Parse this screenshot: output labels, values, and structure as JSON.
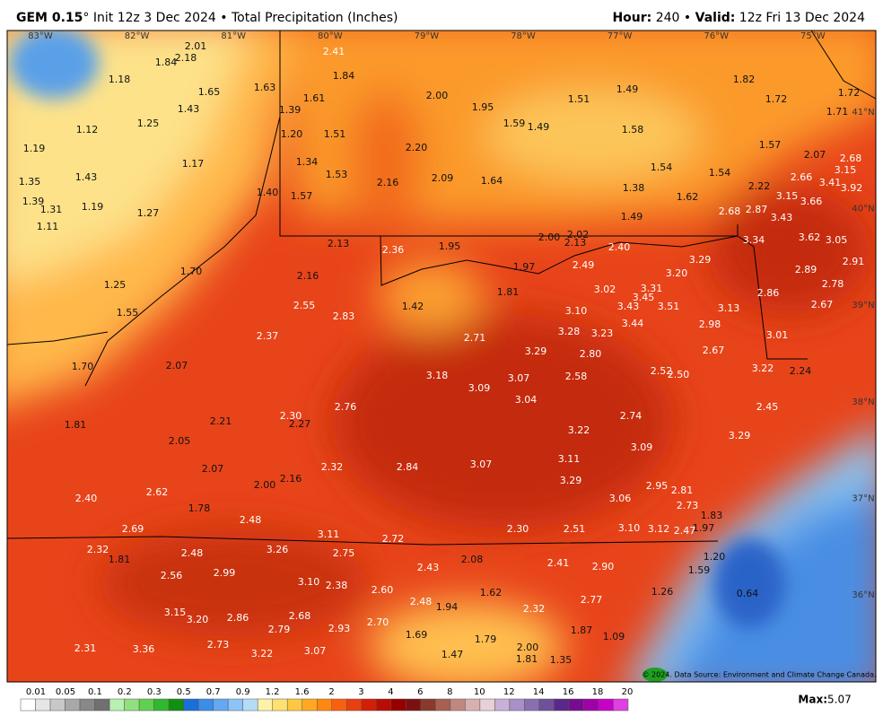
{
  "header": {
    "model": "GEM 0.15",
    "degree": "°",
    "run": " Init 12z 3 Dec 2024 • Total Precipitation (Inches)",
    "hour_label": "Hour:",
    "hour": " 240 • ",
    "valid_label": "Valid:",
    "valid": " 12z Fri 13 Dec 2024"
  },
  "map": {
    "lon_labels": [
      "83°W",
      "82°W",
      "81°W",
      "80°W",
      "79°W",
      "78°W",
      "77°W",
      "76°W",
      "75°W"
    ],
    "lat_labels": [
      "41°N",
      "40°N",
      "39°N",
      "38°N",
      "37°N",
      "36°N"
    ],
    "labels": [
      "2.41",
      "1.84",
      "2.01",
      "2.18",
      "1.84",
      "1.18",
      "1.65",
      "1.63",
      "1.43",
      "1.61",
      "1.39",
      "2.00",
      "1.95",
      "1.51",
      "1.49",
      "1.82",
      "1.72",
      "1.72",
      "1.71",
      "1.12",
      "1.25",
      "1.20",
      "1.51",
      "1.59",
      "1.49",
      "1.58",
      "1.57",
      "1.19",
      "1.17",
      "1.34",
      "2.20",
      "1.54",
      "1.54",
      "2.07",
      "2.68",
      "3.15",
      "1.35",
      "1.43",
      "1.53",
      "2.16",
      "2.09",
      "1.64",
      "1.38",
      "2.66",
      "3.41",
      "3.92",
      "1.39",
      "1.40",
      "1.57",
      "1.62",
      "2.22",
      "3.15",
      "3.66",
      "1.31",
      "1.19",
      "1.27",
      "2.68",
      "2.87",
      "3.43",
      "1.11",
      "1.49",
      "2.00",
      "2.02",
      "3.34",
      "3.62",
      "3.05",
      "2.13",
      "2.36",
      "1.95",
      "2.13",
      "2.40",
      "2.91",
      "3.29",
      "2.89",
      "2.49",
      "1.97",
      "1.70",
      "2.16",
      "3.20",
      "2.78",
      "1.25",
      "1.81",
      "3.02",
      "3.31",
      "3.45",
      "2.86",
      "2.55",
      "2.83",
      "1.42",
      "3.10",
      "3.43",
      "3.51",
      "3.13",
      "2.67",
      "1.55",
      "3.44",
      "2.98",
      "2.37",
      "3.28",
      "3.23",
      "3.01",
      "2.71",
      "3.29",
      "2.67",
      "2.80",
      "2.07",
      "1.70",
      "3.18",
      "3.07",
      "2.58",
      "2.52",
      "2.50",
      "3.22",
      "2.24",
      "3.09",
      "3.04",
      "2.76",
      "2.45",
      "2.30",
      "2.27",
      "2.21",
      "2.74",
      "1.81",
      "3.22",
      "3.29",
      "2.05",
      "3.09",
      "3.11",
      "2.84",
      "3.07",
      "2.07",
      "2.32",
      "2.16",
      "2.00",
      "3.29",
      "2.95",
      "2.81",
      "2.62",
      "3.06",
      "2.40",
      "2.73",
      "1.78",
      "2.48",
      "1.83",
      "2.69",
      "2.30",
      "2.51",
      "3.10",
      "3.12",
      "2.47",
      "1.97",
      "3.11",
      "2.72",
      "2.32",
      "2.48",
      "3.26",
      "2.75",
      "1.81",
      "1.20",
      "2.08",
      "2.41",
      "2.90",
      "2.43",
      "2.56",
      "2.99",
      "1.59",
      "3.10",
      "2.38",
      "2.60",
      "1.62",
      "1.26",
      "0.64",
      "2.77",
      "2.48",
      "1.94",
      "2.32",
      "3.15",
      "2.68",
      "2.86",
      "3.20",
      "2.70",
      "2.79",
      "2.93",
      "1.87",
      "1.09",
      "1.69",
      "1.79",
      "2.31",
      "3.36",
      "2.73",
      "3.07",
      "3.22",
      "2.00",
      "1.47",
      "1.81",
      "1.35"
    ],
    "copyright": "© 2024. Data Source: Environment and Climate Change Canada."
  },
  "colorbar": {
    "labels": [
      "0.01",
      "0.05",
      "0.1",
      "0.2",
      "0.3",
      "0.5",
      "0.7",
      "0.9",
      "1.2",
      "1.6",
      "2",
      "3",
      "4",
      "6",
      "8",
      "10",
      "12",
      "14",
      "16",
      "18",
      "20"
    ],
    "colors": [
      "#ffffff",
      "#e6e6e6",
      "#c8c8c8",
      "#a8a8a8",
      "#888888",
      "#707070",
      "#b8f0b0",
      "#90e080",
      "#60d050",
      "#30b830",
      "#109010",
      "#1a6fd8",
      "#3c8ce8",
      "#64a8f0",
      "#8cc4f5",
      "#b4dcf8",
      "#fff2a8",
      "#ffe070",
      "#ffc840",
      "#ffa820",
      "#ff8810",
      "#f86010",
      "#e84010",
      "#d02008",
      "#b80c04",
      "#980000",
      "#7c1010",
      "#8a3a2a",
      "#a86050",
      "#c08880",
      "#d8b0b0",
      "#e8d0d8",
      "#c8b0d8",
      "#a890c8",
      "#8870b0",
      "#705098",
      "#5a2888",
      "#780c90",
      "#a000a8",
      "#c800c8",
      "#e040e0"
    ],
    "max_label": "Max:",
    "max": " 5.07"
  }
}
